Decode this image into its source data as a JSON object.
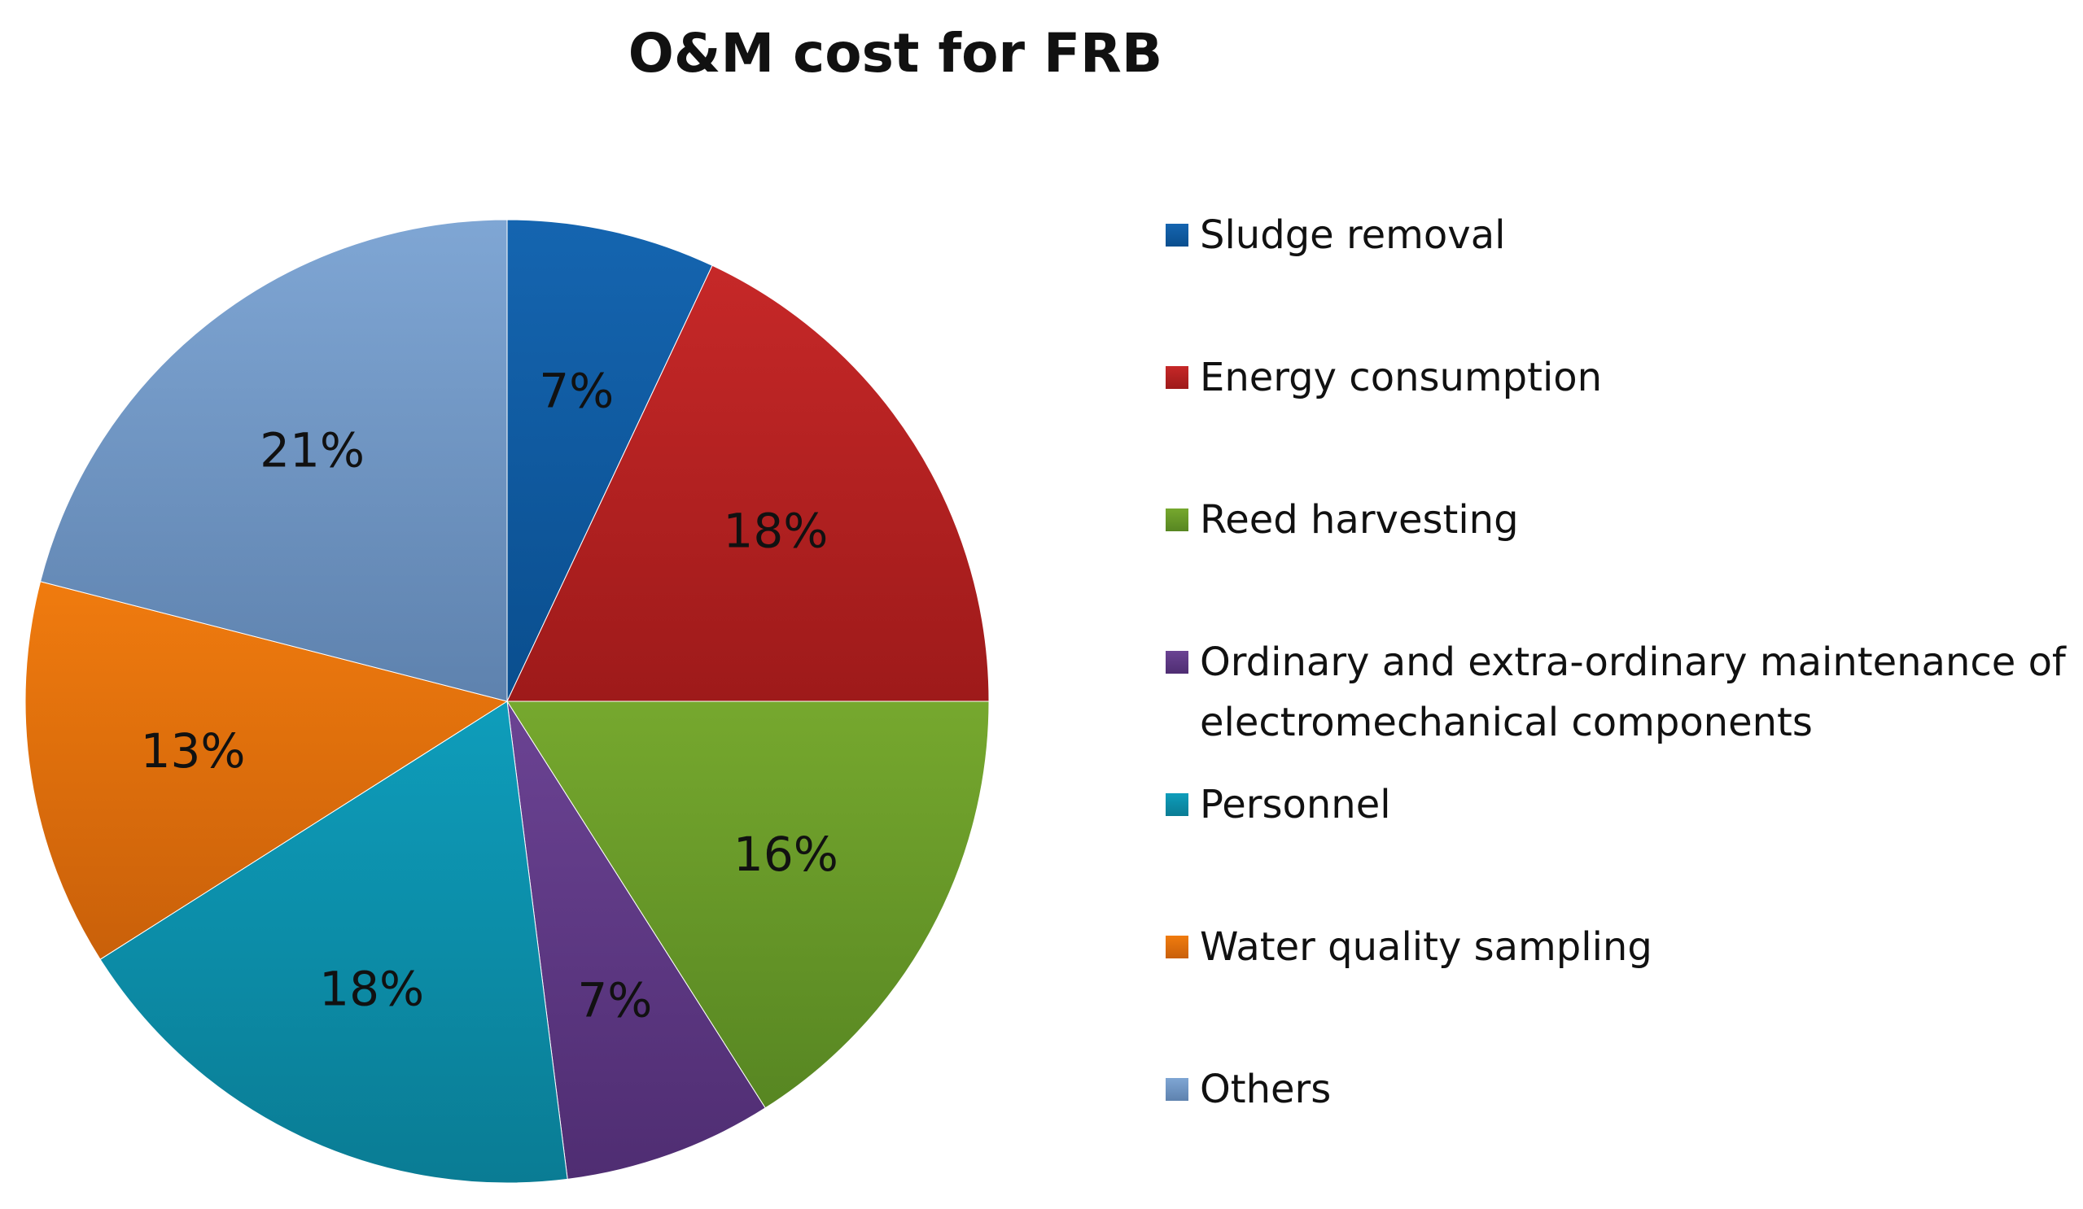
{
  "chart_data": {
    "type": "pie",
    "title": "O&M cost for FRB",
    "legend_position": "right",
    "series": [
      {
        "values": [
          7,
          18,
          16,
          7,
          18,
          13,
          21
        ],
        "data_labels": [
          "7%",
          "18%",
          "16%",
          "7%",
          "18%",
          "13%",
          "21%"
        ]
      }
    ],
    "categories": [
      "Sludge removal",
      "Energy consumption",
      "Reed harvesting",
      "Ordinary and extra-ordinary maintenance of electromechanical components",
      "Personnel",
      "Water quality sampling",
      "Others"
    ],
    "legend_lines": [
      [
        "Sludge removal"
      ],
      [
        "Energy consumption"
      ],
      [
        "Reed harvesting"
      ],
      [
        "Ordinary and extra-ordinary maintenance of",
        "electromechanical components"
      ],
      [
        "Personnel"
      ],
      [
        "Water quality sampling"
      ],
      [
        "Others"
      ]
    ],
    "colors": [
      "#1565B0",
      "#C62828",
      "#76A82E",
      "#6B4393",
      "#0E9DBB",
      "#F07B0E",
      "#7FA6D4"
    ],
    "colors_dark": [
      "#0A4E8E",
      "#9E1A1A",
      "#578622",
      "#4F2D72",
      "#0A7C94",
      "#C9600A",
      "#5E82AE"
    ]
  }
}
